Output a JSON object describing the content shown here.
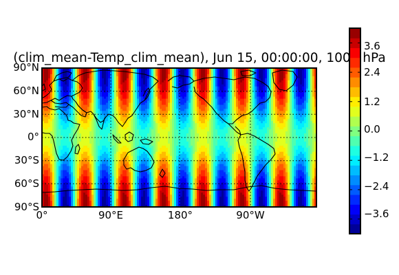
{
  "title": "(clim_mean-Temp_clim_mean), Jun 15,  00:00:00, 1000 hPa",
  "map": {
    "projection": "cylindrical",
    "lon_range": [
      0,
      360
    ],
    "lat_range": [
      -90,
      90
    ],
    "coastlines": true,
    "gridlines": "dotted",
    "lat_tick_labels": [
      "90°N",
      "60°N",
      "30°N",
      "0°",
      "30°S",
      "60°S",
      "90°S"
    ],
    "lon_tick_labels": [
      "0°",
      "90°E",
      "180°",
      "90°W"
    ],
    "field_pattern": "longitudinal bands, wavenumber 7, peaks at high latitudes"
  },
  "colorbar": {
    "colormap": "jet",
    "orientation": "vertical",
    "range": [
      -4.2,
      4.2
    ],
    "tick_labels": [
      "3.6",
      "2.4",
      "1.2",
      "0.0",
      "−1.2",
      "−2.4",
      "−3.6"
    ],
    "tick_values": [
      3.6,
      2.4,
      1.2,
      0.0,
      -1.2,
      -2.4,
      -3.6
    ]
  }
}
